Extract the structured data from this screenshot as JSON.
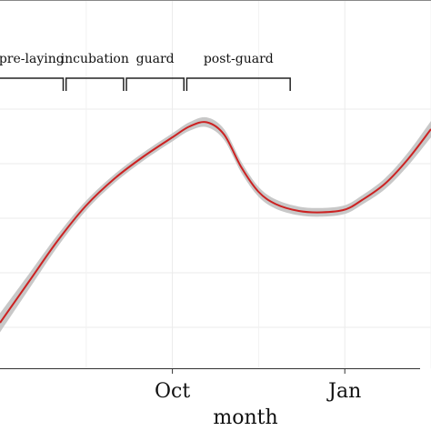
{
  "chart_data": {
    "type": "line",
    "title": "",
    "xlabel": "month",
    "ylabel": "",
    "x_ticks": [
      {
        "label": "Oct",
        "month": 10.0
      },
      {
        "label": "Jan",
        "month": 13.0
      }
    ],
    "xlim": [
      7.0,
      14.5
    ],
    "ylim": [
      0,
      1
    ],
    "grid": true,
    "series": [
      {
        "color": "#cc2222",
        "band_color": "#c8c8c8",
        "x": [
          7.0,
          7.5,
          8.0,
          8.5,
          9.0,
          9.5,
          10.0,
          10.3,
          10.6,
          10.9,
          11.2,
          11.5,
          11.8,
          12.2,
          12.6,
          13.0,
          13.3,
          13.7,
          14.1,
          14.5
        ],
        "y": [
          0.15,
          0.3,
          0.45,
          0.58,
          0.68,
          0.76,
          0.83,
          0.87,
          0.885,
          0.84,
          0.72,
          0.63,
          0.585,
          0.56,
          0.555,
          0.565,
          0.6,
          0.66,
          0.75,
          0.86
        ],
        "band": [
          0.035,
          0.028,
          0.022,
          0.018,
          0.016,
          0.015,
          0.015,
          0.016,
          0.018,
          0.02,
          0.02,
          0.018,
          0.017,
          0.016,
          0.016,
          0.016,
          0.017,
          0.02,
          0.024,
          0.03
        ]
      }
    ],
    "phases": [
      {
        "label": "pre-laying",
        "start": 7.0,
        "end": 8.1
      },
      {
        "label": "incubation",
        "start": 8.15,
        "end": 9.15
      },
      {
        "label": "guard",
        "start": 9.2,
        "end": 10.2
      },
      {
        "label": "post-guard",
        "start": 10.25,
        "end": 12.05
      }
    ]
  }
}
